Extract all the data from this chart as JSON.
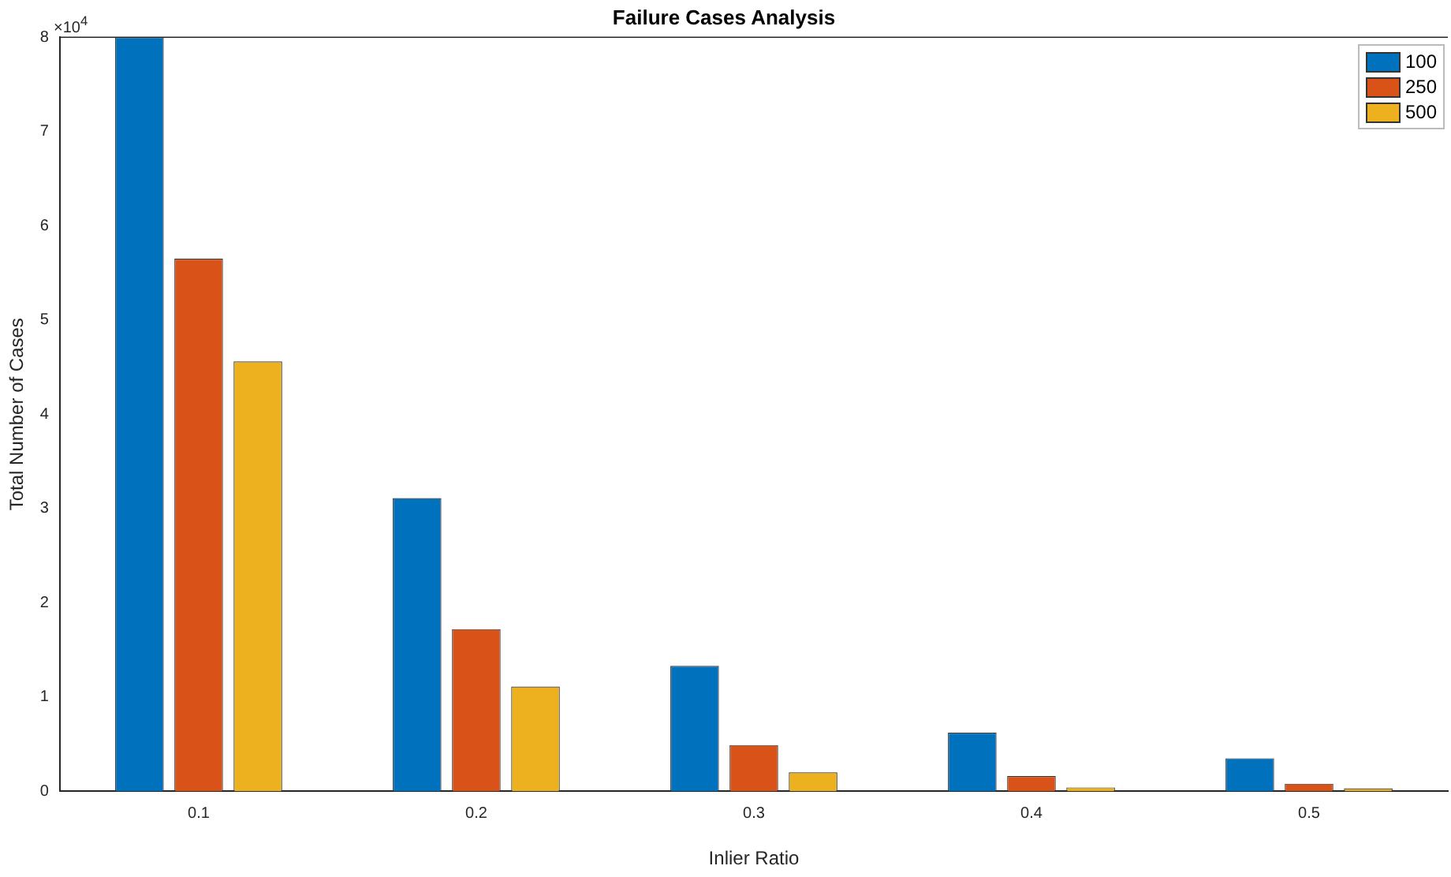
{
  "chart_data": {
    "type": "bar",
    "title": "Failure Cases Analysis",
    "xlabel": "Inlier Ratio",
    "ylabel": "Total Number of Cases",
    "categories": [
      "0.1",
      "0.2",
      "0.3",
      "0.4",
      "0.5"
    ],
    "series": [
      {
        "name": "100",
        "color": "#0072bd",
        "values": [
          8,
          3.11,
          1.33,
          0.62,
          0.35
        ]
      },
      {
        "name": "250",
        "color": "#d95319",
        "values": [
          5.65,
          1.72,
          0.49,
          0.16,
          0.08
        ]
      },
      {
        "name": "500",
        "color": "#edb120",
        "values": [
          4.56,
          1.11,
          0.2,
          0.04,
          0.03
        ]
      }
    ],
    "ylim": [
      0,
      8
    ],
    "yticks": [
      0,
      1,
      2,
      3,
      4,
      5,
      6,
      7,
      8
    ],
    "annotations": [
      "×10$^{4}$"
    ],
    "grid": false,
    "legend": "top right"
  }
}
